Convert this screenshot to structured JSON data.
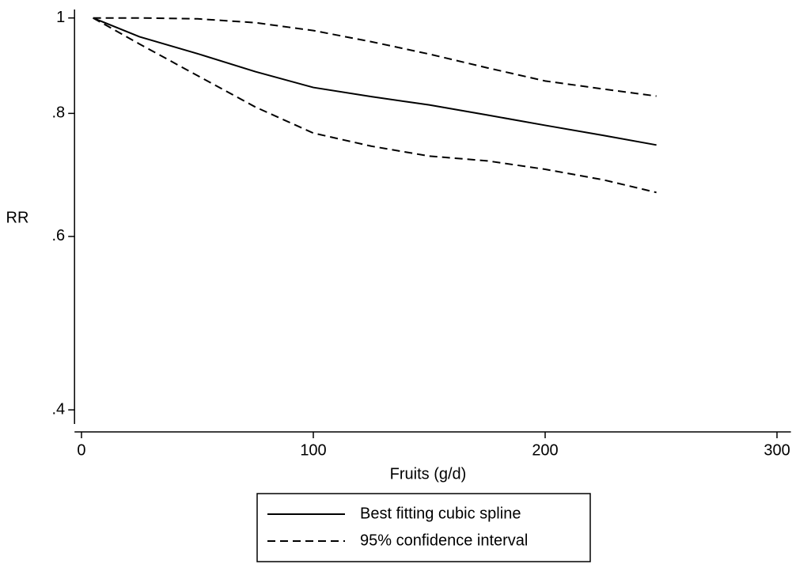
{
  "chart_data": {
    "type": "line",
    "x_label": "Fruits (g/d)",
    "y_label": "RR",
    "x": [
      5,
      25,
      50,
      75,
      100,
      125,
      150,
      175,
      200,
      225,
      248
    ],
    "series": [
      {
        "name": "Best fitting cubic spline",
        "color": "#000000",
        "dash": false,
        "values": [
          1,
          0.957,
          0.92,
          0.882,
          0.85,
          0.832,
          0.816,
          0.797,
          0.778,
          0.76,
          0.743
        ]
      },
      {
        "name": "95% confidence interval",
        "color": "#000000",
        "dash": true,
        "upper": [
          1,
          1.0,
          0.998,
          0.989,
          0.971,
          0.946,
          0.919,
          0.89,
          0.863,
          0.847,
          0.833
        ],
        "lower": [
          1,
          0.941,
          0.874,
          0.812,
          0.764,
          0.741,
          0.724,
          0.716,
          0.702,
          0.685,
          0.665
        ]
      }
    ],
    "xlim": [
      -3,
      306
    ],
    "xticks": [
      0,
      100,
      200,
      300
    ],
    "ylim": [
      0.387,
      1.02
    ],
    "log_y": true,
    "yticks": [
      {
        "value": 0.4,
        "label": ".4"
      },
      {
        "value": 0.6,
        "label": ".6"
      },
      {
        "value": 0.8,
        "label": ".8"
      },
      {
        "value": 1,
        "label": "1"
      }
    ],
    "legend": "bottom"
  }
}
